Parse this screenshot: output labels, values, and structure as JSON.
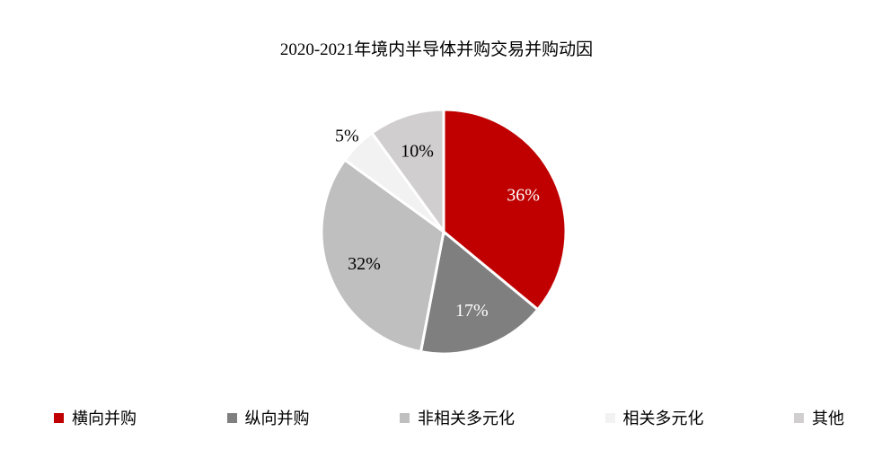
{
  "chart_data": {
    "type": "pie",
    "title": "2020-2021年境内半导体并购交易并购动因",
    "unit": "%",
    "categories": [
      "横向并购",
      "纵向并购",
      "非相关多元化",
      "相关多元化",
      "其他"
    ],
    "values": [
      36,
      17,
      32,
      5,
      10
    ],
    "labels": [
      "36%",
      "17%",
      "32%",
      "5%",
      "10%"
    ],
    "colors": [
      "#C00000",
      "#7F7F7F",
      "#BFBFBF",
      "#F2F2F2",
      "#D0CECE"
    ],
    "label_colors": [
      "#ffffff",
      "#ffffff",
      "#000000",
      "#000000",
      "#000000"
    ],
    "legend_position": "bottom"
  }
}
